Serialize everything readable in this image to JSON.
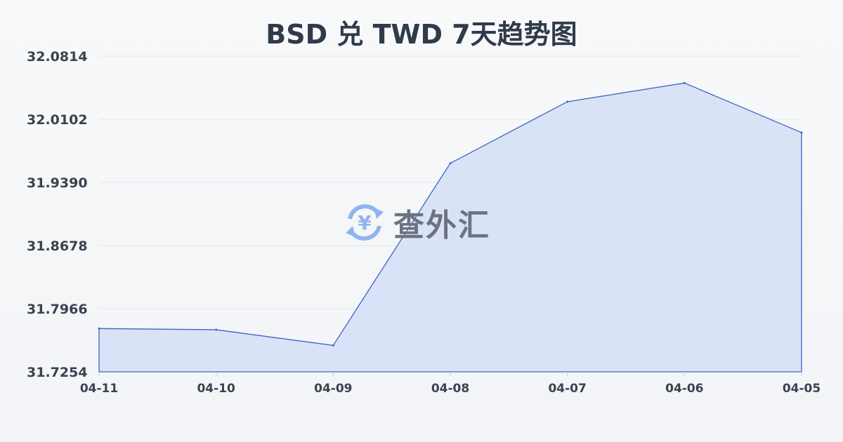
{
  "chart_data": {
    "type": "area",
    "title": "BSD 兑 TWD 7天趋势图",
    "categories": [
      "04-11",
      "04-10",
      "04-09",
      "04-08",
      "04-07",
      "04-06",
      "04-05"
    ],
    "values": [
      31.7742,
      31.7729,
      31.7552,
      31.9606,
      32.03,
      32.0511,
      31.9952
    ],
    "yticks": [
      "31.7254",
      "31.7966",
      "31.8678",
      "31.9390",
      "32.0102",
      "32.0814"
    ],
    "ylim": [
      31.7254,
      32.0814
    ],
    "grid": true,
    "line_color": "#3a66c8",
    "fill_color": "#d6e0f5"
  },
  "watermark": {
    "text": "查外汇",
    "icon": "yen-exchange-icon",
    "icon_color": "#8fb4f0"
  }
}
